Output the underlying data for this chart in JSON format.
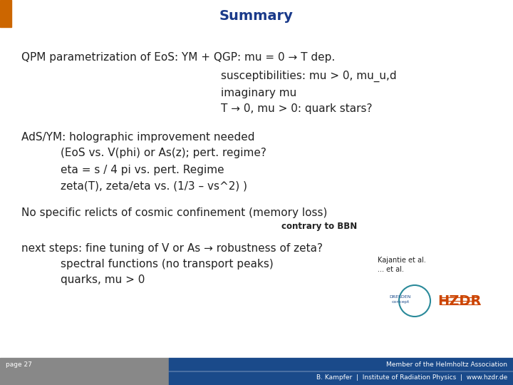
{
  "title": "Summary",
  "title_color": "#1a3a8a",
  "title_fontsize": 14,
  "background_color": "#ffffff",
  "orange_color": "#cc6600",
  "gray_color": "#888888",
  "blue_color": "#1a4a8a",
  "footer_text_left": "page 27",
  "footer_text_right1": "Member of the Helmholtz Association",
  "footer_text_right2": "B. Kampfer  |  Institute of Radiation Physics  |  www.hzdr.de",
  "main_fontsize": 11.0,
  "small_fontsize": 7.0,
  "text_color": "#222222"
}
